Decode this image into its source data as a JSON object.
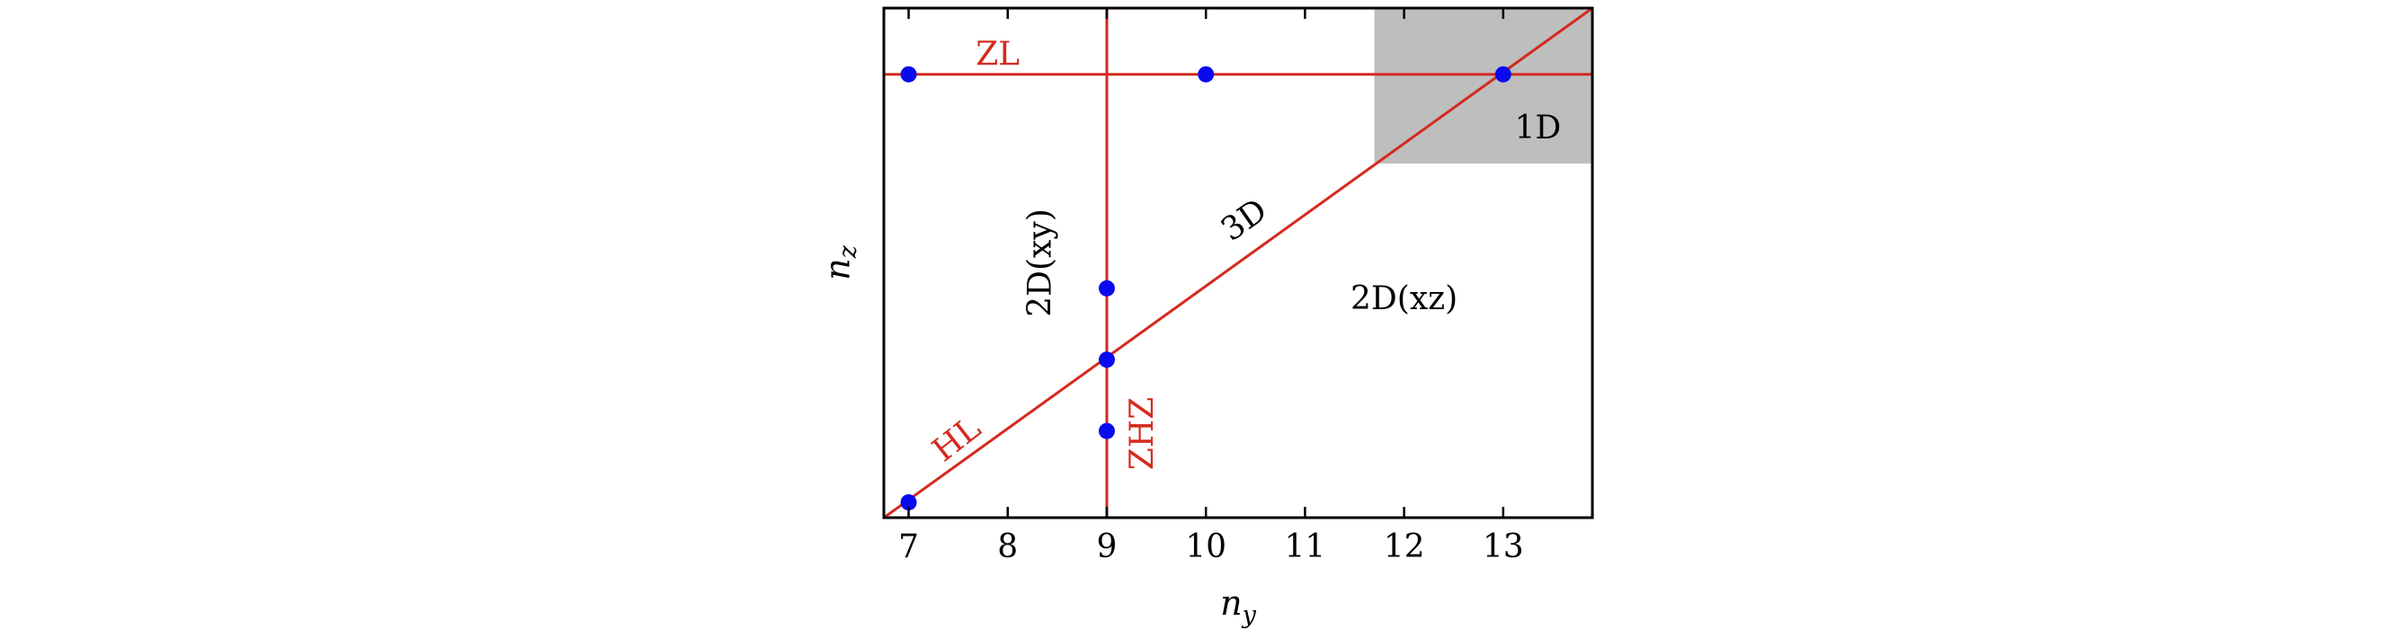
{
  "chart_data": {
    "type": "scatter",
    "xlabel": "n_y",
    "ylabel": "n_z",
    "xlim": [
      6.75,
      13.9
    ],
    "ylim": [
      0,
      1
    ],
    "x_ticks": [
      7,
      8,
      9,
      10,
      11,
      12,
      13
    ],
    "y_ticks": [],
    "grid": false,
    "colors": {
      "lines": "#d42a1e",
      "points": "#0a0aee",
      "shaded": "#bebebe",
      "text": "#000000"
    },
    "shaded_region": {
      "label": "1D",
      "x": [
        11.7,
        13.9
      ],
      "y": [
        0.695,
        1.0
      ]
    },
    "lines": [
      {
        "label": "ZL",
        "kind": "horizontal",
        "y": 0.87
      },
      {
        "label": "ZHZ",
        "kind": "vertical",
        "x": 9
      },
      {
        "label": "HL",
        "kind": "diagonal",
        "from": [
          6.75,
          0.0
        ],
        "to": [
          13.9,
          1.0
        ]
      }
    ],
    "points": [
      {
        "x": 7,
        "y": 0.87
      },
      {
        "x": 10,
        "y": 0.87
      },
      {
        "x": 13,
        "y": 0.87
      },
      {
        "x": 9,
        "y": 0.45
      },
      {
        "x": 9,
        "y": 0.31
      },
      {
        "x": 9,
        "y": 0.17
      },
      {
        "x": 7,
        "y": 0.03
      }
    ],
    "region_labels": [
      {
        "text": "2D(xy)",
        "x": 8.35,
        "y": 0.5,
        "rotate": -90
      },
      {
        "text": "3D",
        "x": 10.4,
        "y": 0.58,
        "rotate": -35
      },
      {
        "text": "2D(xz)",
        "x": 12.0,
        "y": 0.425,
        "rotate": 0
      },
      {
        "text": "1D",
        "x": 13.35,
        "y": 0.76,
        "rotate": 0
      }
    ],
    "line_labels": [
      {
        "text": "ZL",
        "x": 7.9,
        "y": 0.905,
        "rotate": 0
      },
      {
        "text": "HL",
        "x": 7.5,
        "y": 0.15,
        "rotate": -38
      },
      {
        "text": "ZHZ",
        "x": 9.38,
        "y": 0.165,
        "rotate": -90
      }
    ]
  }
}
